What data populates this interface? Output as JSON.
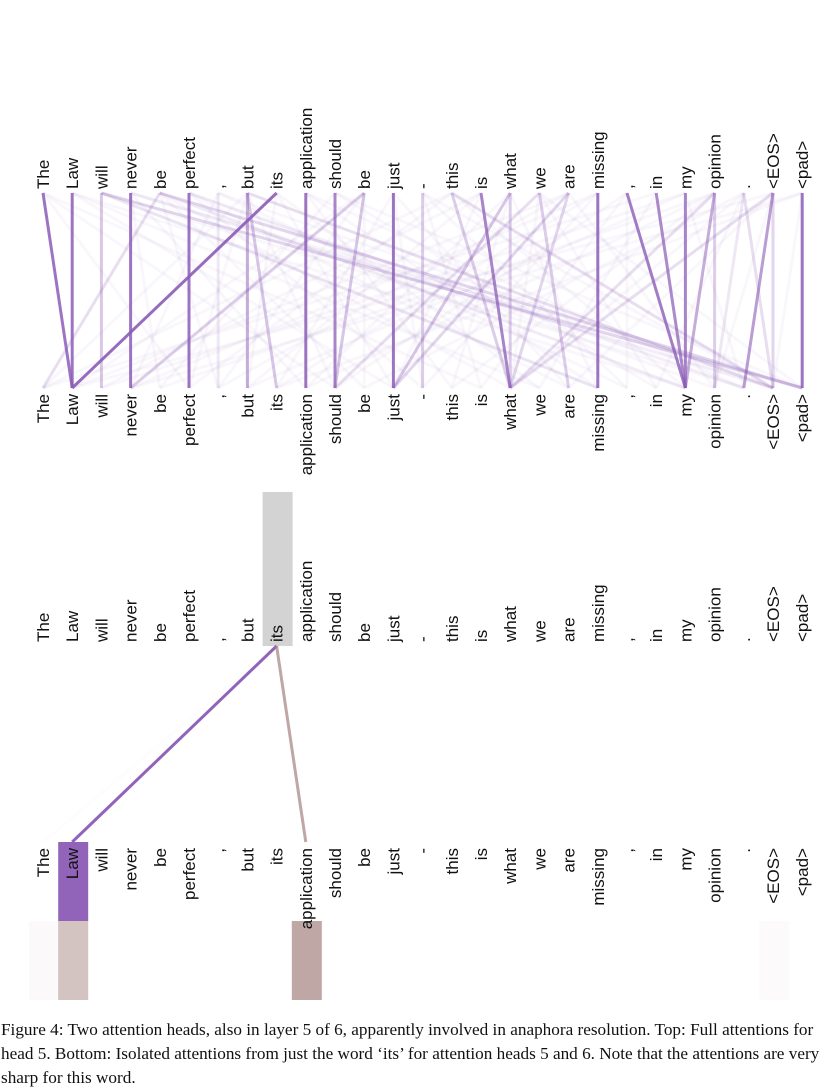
{
  "figure": {
    "tokens": [
      "The",
      "Law",
      "will",
      "never",
      "be",
      "perfect",
      ",",
      "but",
      "its",
      "application",
      "should",
      "be",
      "just",
      "-",
      "this",
      "is",
      "what",
      "we",
      "are",
      "missing",
      ",",
      "in",
      "my",
      "opinion",
      ".",
      "<EOS>",
      "<pad>"
    ],
    "top_panel": {
      "description": "Full attentions for head 5",
      "line_color": "#8b5cb6",
      "strong_edges": [
        {
          "from": 0,
          "to": 1,
          "weight": 0.85
        },
        {
          "from": 1,
          "to": 1,
          "weight": 0.85
        },
        {
          "from": 3,
          "to": 3,
          "weight": 0.85
        },
        {
          "from": 5,
          "to": 5,
          "weight": 0.85
        },
        {
          "from": 8,
          "to": 1,
          "weight": 0.9
        },
        {
          "from": 9,
          "to": 9,
          "weight": 0.85
        },
        {
          "from": 10,
          "to": 10,
          "weight": 0.75
        },
        {
          "from": 12,
          "to": 12,
          "weight": 0.85
        },
        {
          "from": 15,
          "to": 16,
          "weight": 0.75
        },
        {
          "from": 19,
          "to": 19,
          "weight": 0.85
        },
        {
          "from": 20,
          "to": 22,
          "weight": 0.8
        },
        {
          "from": 21,
          "to": 22,
          "weight": 0.7
        },
        {
          "from": 22,
          "to": 22,
          "weight": 0.75
        },
        {
          "from": 23,
          "to": 22,
          "weight": 0.5
        },
        {
          "from": 25,
          "to": 24,
          "weight": 0.6
        },
        {
          "from": 26,
          "to": 26,
          "weight": 0.85
        }
      ],
      "medium_edges": [
        {
          "from": 2,
          "to": 2,
          "weight": 0.3
        },
        {
          "from": 2,
          "to": 26,
          "weight": 0.25
        },
        {
          "from": 4,
          "to": 0,
          "weight": 0.2
        },
        {
          "from": 4,
          "to": 26,
          "weight": 0.25
        },
        {
          "from": 6,
          "to": 6,
          "weight": 0.15
        },
        {
          "from": 7,
          "to": 7,
          "weight": 0.5
        },
        {
          "from": 7,
          "to": 8,
          "weight": 0.35
        },
        {
          "from": 7,
          "to": 25,
          "weight": 0.2
        },
        {
          "from": 11,
          "to": 3,
          "weight": 0.3
        },
        {
          "from": 11,
          "to": 10,
          "weight": 0.35
        },
        {
          "from": 13,
          "to": 13,
          "weight": 0.3
        },
        {
          "from": 14,
          "to": 16,
          "weight": 0.3
        },
        {
          "from": 14,
          "to": 25,
          "weight": 0.2
        },
        {
          "from": 16,
          "to": 12,
          "weight": 0.35
        },
        {
          "from": 16,
          "to": 16,
          "weight": 0.3
        },
        {
          "from": 17,
          "to": 18,
          "weight": 0.3
        },
        {
          "from": 17,
          "to": 10,
          "weight": 0.2
        },
        {
          "from": 18,
          "to": 12,
          "weight": 0.25
        },
        {
          "from": 18,
          "to": 16,
          "weight": 0.25
        },
        {
          "from": 23,
          "to": 23,
          "weight": 0.3
        },
        {
          "from": 23,
          "to": 16,
          "weight": 0.2
        },
        {
          "from": 24,
          "to": 25,
          "weight": 0.2
        },
        {
          "from": 24,
          "to": 23,
          "weight": 0.15
        },
        {
          "from": 25,
          "to": 25,
          "weight": 0.25
        },
        {
          "from": 25,
          "to": 16,
          "weight": 0.2
        },
        {
          "from": 2,
          "to": 19,
          "weight": 0.12
        },
        {
          "from": 4,
          "to": 22,
          "weight": 0.12
        },
        {
          "from": 5,
          "to": 24,
          "weight": 0.1
        },
        {
          "from": 3,
          "to": 25,
          "weight": 0.1
        }
      ]
    },
    "bottom_panel": {
      "description": "Isolated attentions from just the word 'its' for attention heads 5 and 6",
      "focus_token": 8,
      "head_colors": [
        "#8b5cb6",
        "#a88a86"
      ],
      "edges": [
        {
          "head": 5,
          "to": 1,
          "weight": 0.95
        },
        {
          "head": 6,
          "to": 9,
          "weight": 0.75
        },
        {
          "head": 5,
          "to": 0,
          "weight": 0.02
        }
      ],
      "target_bars": [
        {
          "token": 0,
          "head5": 0.0,
          "head6": 0.05
        },
        {
          "token": 1,
          "head5": 0.95,
          "head6": 0.5
        },
        {
          "token": 9,
          "head5": 0.0,
          "head6": 0.75
        },
        {
          "token": 25,
          "head5": 0.0,
          "head6": 0.04
        }
      ]
    }
  },
  "caption": "Figure 4: Two attention heads, also in layer 5 of 6, apparently involved in anaphora resolution. Top: Full attentions for head 5. Bottom: Isolated attentions from just the word ‘its’ for attention heads 5 and 6. Note that the attentions are very sharp for this word."
}
